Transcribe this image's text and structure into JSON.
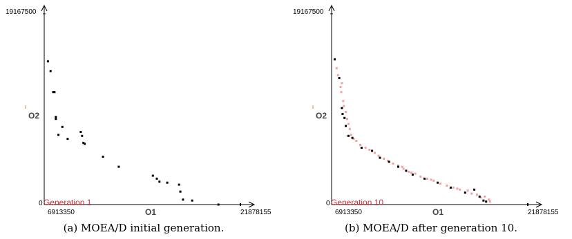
{
  "chart_data": [
    {
      "type": "scatter",
      "generation_label": "Generation 1",
      "xlabel": "O1",
      "ylabel": "O2",
      "x_min_label": "6913350",
      "x_max_label": "21878155",
      "y_max_label": "19167500",
      "origin_label": "0",
      "xlim": [
        6913350,
        21878155
      ],
      "ylim": [
        0,
        19167500
      ],
      "colors": {
        "current": "#000000"
      },
      "series": [
        {
          "role": "current",
          "points": [
            [
              7200000,
              14400000
            ],
            [
              7400000,
              13400000
            ],
            [
              7600000,
              11300000
            ],
            [
              7700000,
              11300000
            ],
            [
              7800000,
              8800000
            ],
            [
              7800000,
              8600000
            ],
            [
              8000000,
              7000000
            ],
            [
              8300000,
              7800000
            ],
            [
              8700000,
              6600000
            ],
            [
              9700000,
              7300000
            ],
            [
              9800000,
              6900000
            ],
            [
              9900000,
              6200000
            ],
            [
              10000000,
              6100000
            ],
            [
              11400000,
              4800000
            ],
            [
              12600000,
              3800000
            ],
            [
              15200000,
              2900000
            ],
            [
              15500000,
              2600000
            ],
            [
              15700000,
              2300000
            ],
            [
              16300000,
              2200000
            ],
            [
              17200000,
              2000000
            ],
            [
              17300000,
              1300000
            ],
            [
              17500000,
              500000
            ],
            [
              18200000,
              400000
            ],
            [
              20200000,
              0
            ]
          ]
        }
      ],
      "caption": "(a) MOEA/D initial generation."
    },
    {
      "type": "scatter",
      "generation_label": "Generation 10",
      "xlabel": "O1",
      "ylabel": "O2",
      "x_min_label": "6913350",
      "x_max_label": "21878155",
      "y_max_label": "19167500",
      "origin_label": "0",
      "xlim": [
        6913350,
        21878155
      ],
      "ylim": [
        0,
        19167500
      ],
      "colors": {
        "current": "#000000",
        "previous": "#f4a0a0"
      },
      "series": [
        {
          "role": "current",
          "points": [
            [
              7150000,
              14600000
            ],
            [
              7500000,
              12700000
            ],
            [
              7700000,
              9700000
            ],
            [
              7750000,
              9100000
            ],
            [
              7900000,
              8700000
            ],
            [
              8000000,
              7900000
            ],
            [
              8200000,
              6900000
            ],
            [
              8500000,
              6700000
            ],
            [
              9200000,
              5700000
            ],
            [
              10000000,
              5400000
            ],
            [
              10600000,
              4700000
            ],
            [
              11300000,
              4300000
            ],
            [
              12000000,
              3800000
            ],
            [
              12600000,
              3400000
            ],
            [
              13100000,
              3000000
            ],
            [
              14000000,
              2600000
            ],
            [
              15000000,
              2200000
            ],
            [
              16000000,
              1700000
            ],
            [
              17100000,
              1200000
            ],
            [
              17800000,
              1500000
            ],
            [
              18200000,
              800000
            ],
            [
              18500000,
              400000
            ],
            [
              18700000,
              300000
            ]
          ]
        },
        {
          "role": "previous",
          "points": [
            [
              7300000,
              13700000
            ],
            [
              7400000,
              13000000
            ],
            [
              7600000,
              11800000
            ],
            [
              7650000,
              11300000
            ],
            [
              7800000,
              10400000
            ],
            [
              7850000,
              9900000
            ],
            [
              8000000,
              9300000
            ],
            [
              8100000,
              8600000
            ],
            [
              8200000,
              8100000
            ],
            [
              8300000,
              7600000
            ],
            [
              8400000,
              7000000
            ],
            [
              8600000,
              6600000
            ],
            [
              8800000,
              6400000
            ],
            [
              9100000,
              6000000
            ],
            [
              9500000,
              5700000
            ],
            [
              9800000,
              5500000
            ],
            [
              10200000,
              5200000
            ],
            [
              10500000,
              4900000
            ],
            [
              10900000,
              4600000
            ],
            [
              11200000,
              4400000
            ],
            [
              11600000,
              4100000
            ],
            [
              12000000,
              3900000
            ],
            [
              12400000,
              3600000
            ],
            [
              12800000,
              3300000
            ],
            [
              13300000,
              3100000
            ],
            [
              13700000,
              2800000
            ],
            [
              14200000,
              2600000
            ],
            [
              14700000,
              2400000
            ],
            [
              15200000,
              2100000
            ],
            [
              15700000,
              1900000
            ],
            [
              16200000,
              1700000
            ],
            [
              16700000,
              1500000
            ],
            [
              17300000,
              1400000
            ],
            [
              17600000,
              1100000
            ],
            [
              18000000,
              1000000
            ],
            [
              18300000,
              700000
            ],
            [
              18600000,
              800000
            ],
            [
              18900000,
              500000
            ],
            [
              19000000,
              300000
            ],
            [
              12300000,
              3800000
            ],
            [
              13000000,
              3200000
            ],
            [
              14500000,
              2500000
            ],
            [
              16500000,
              1600000
            ],
            [
              7700000,
              12200000
            ]
          ]
        }
      ],
      "caption": "(b) MOEA/D after generation 10."
    }
  ]
}
